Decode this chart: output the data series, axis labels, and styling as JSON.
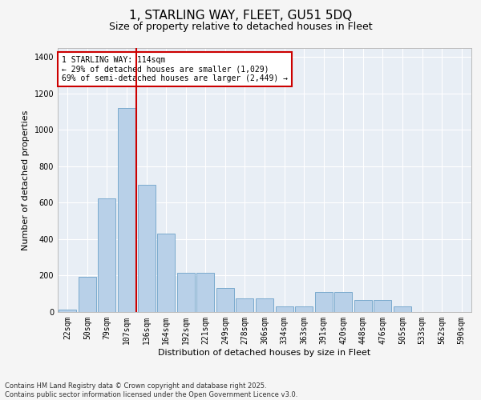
{
  "title_line1": "1, STARLING WAY, FLEET, GU51 5DQ",
  "title_line2": "Size of property relative to detached houses in Fleet",
  "xlabel": "Distribution of detached houses by size in Fleet",
  "ylabel": "Number of detached properties",
  "categories": [
    "22sqm",
    "50sqm",
    "79sqm",
    "107sqm",
    "136sqm",
    "164sqm",
    "192sqm",
    "221sqm",
    "249sqm",
    "278sqm",
    "306sqm",
    "334sqm",
    "363sqm",
    "391sqm",
    "420sqm",
    "448sqm",
    "476sqm",
    "505sqm",
    "533sqm",
    "562sqm",
    "590sqm"
  ],
  "values": [
    15,
    195,
    625,
    1120,
    700,
    430,
    215,
    215,
    130,
    75,
    75,
    30,
    30,
    110,
    110,
    65,
    65,
    30,
    0,
    0,
    0
  ],
  "bar_color": "#b8d0e8",
  "bar_edge_color": "#7aaace",
  "background_color": "#e8eef5",
  "grid_color": "#ffffff",
  "vline_position": 3.5,
  "vline_color": "#cc0000",
  "annotation_text_line1": "1 STARLING WAY: 114sqm",
  "annotation_text_line2": "← 29% of detached houses are smaller (1,029)",
  "annotation_text_line3": "69% of semi-detached houses are larger (2,449) →",
  "annotation_box_color": "#cc0000",
  "annotation_box_bg": "#ffffff",
  "ylim": [
    0,
    1450
  ],
  "yticks": [
    0,
    200,
    400,
    600,
    800,
    1000,
    1200,
    1400
  ],
  "footnote": "Contains HM Land Registry data © Crown copyright and database right 2025.\nContains public sector information licensed under the Open Government Licence v3.0.",
  "title_fontsize": 11,
  "subtitle_fontsize": 9,
  "axis_label_fontsize": 8,
  "tick_fontsize": 7,
  "annotation_fontsize": 7
}
